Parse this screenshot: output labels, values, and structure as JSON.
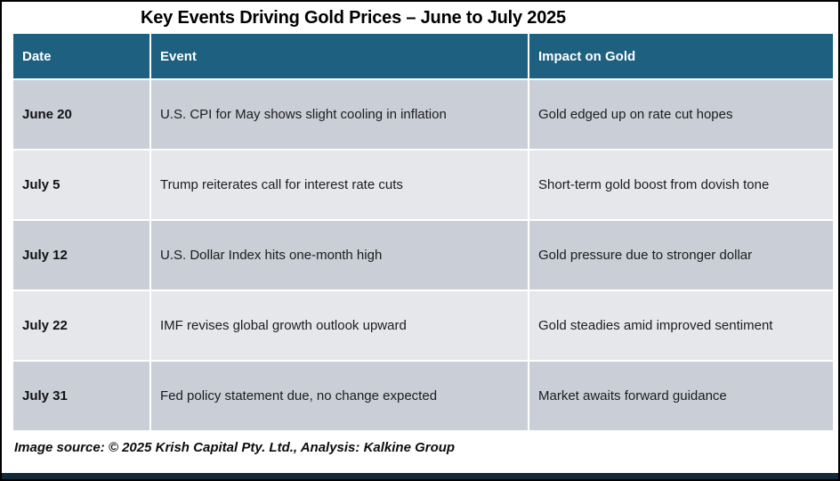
{
  "chart_data": {
    "type": "table",
    "title": "Key Events Driving Gold Prices – June to July 2025",
    "columns": [
      "Date",
      "Event",
      "Impact on Gold"
    ],
    "rows": [
      {
        "date": "June 20",
        "event": "U.S. CPI for May shows slight cooling in inflation",
        "impact": "Gold edged up on rate cut hopes"
      },
      {
        "date": "July 5",
        "event": "Trump reiterates call for interest rate cuts",
        "impact": "Short-term gold boost from dovish tone"
      },
      {
        "date": "July 12",
        "event": "U.S. Dollar Index hits one-month high",
        "impact": "Gold pressure due to stronger dollar"
      },
      {
        "date": "July 22",
        "event": "IMF revises global growth outlook upward",
        "impact": "Gold steadies amid improved sentiment"
      },
      {
        "date": "July 31",
        "event": "Fed policy statement due, no change expected",
        "impact": "Market awaits forward guidance"
      }
    ],
    "source": "Image source: © 2025 Krish Capital Pty. Ltd., Analysis: Kalkine Group",
    "layout_hints": {
      "header_position": "top",
      "grid": "white 2px separators",
      "row_striping": "alternating"
    }
  },
  "colors": {
    "header_bg": "#1d6080",
    "header_text": "#ffffff",
    "row_dark_bg": "#c9ced7",
    "row_light_bg": "#e5e7ea",
    "body_text": "#1c1c1c",
    "frame_border": "#000000",
    "bottom_bar": "#12293a",
    "background": "#ffffff"
  }
}
